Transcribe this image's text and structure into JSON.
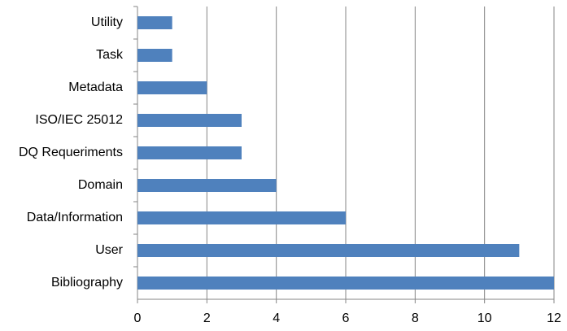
{
  "chart_data": {
    "type": "bar",
    "orientation": "horizontal",
    "categories": [
      "Utility",
      "Task",
      "Metadata",
      "ISO/IEC 25012",
      "DQ Requeriments",
      "Domain",
      "Data/Information",
      "User",
      "Bibliography"
    ],
    "values": [
      1,
      1,
      2,
      3,
      3,
      4,
      6,
      11,
      12
    ],
    "color": "#4f81bd",
    "xlim": [
      0,
      12
    ],
    "xticks": [
      0,
      2,
      4,
      6,
      8,
      10,
      12
    ],
    "grid": true
  }
}
